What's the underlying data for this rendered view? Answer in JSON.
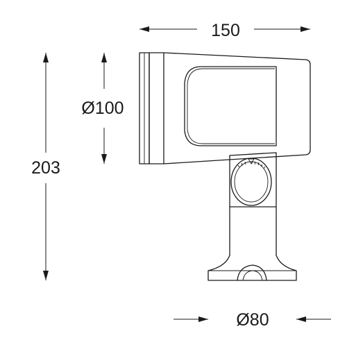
{
  "dimensions": {
    "overall_length": "150",
    "lens_diameter": "Ø100",
    "overall_height": "203",
    "base_diameter": "Ø80"
  }
}
